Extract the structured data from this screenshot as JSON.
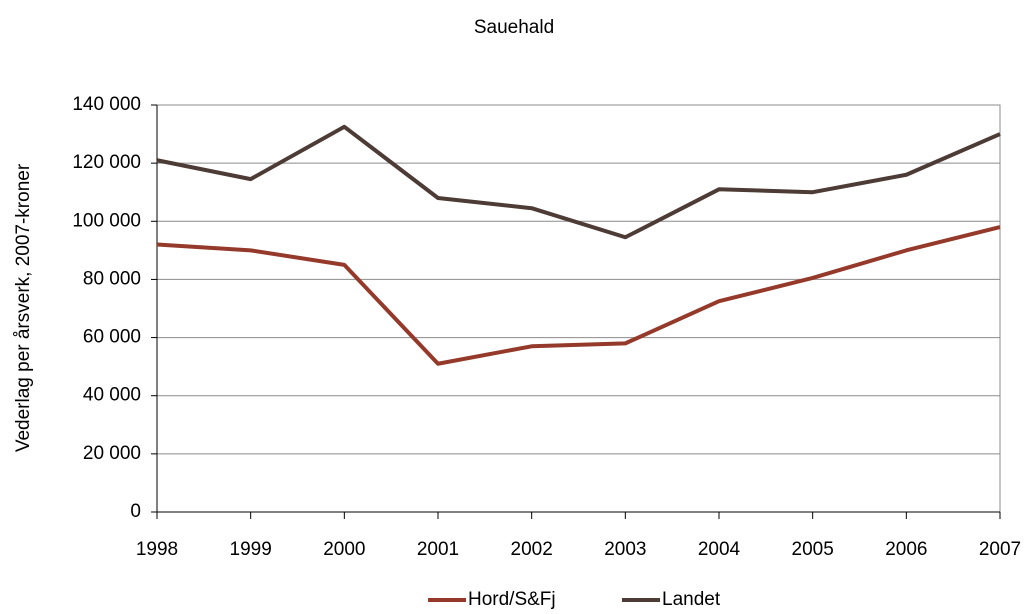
{
  "chart_data": {
    "type": "line",
    "title": "Sauehald",
    "ylabel": "Vederlag per årsverk, 2007-kroner",
    "x": [
      1998,
      1999,
      2000,
      2001,
      2002,
      2003,
      2004,
      2005,
      2006,
      2007
    ],
    "xlim": [
      1998,
      2007
    ],
    "xticks": [
      1998,
      1999,
      2000,
      2001,
      2002,
      2003,
      2004,
      2005,
      2006,
      2007
    ],
    "ylim": [
      0,
      140000
    ],
    "yticks": [
      0,
      {
        "value": 20000,
        "label": "20 000"
      },
      {
        "value": 40000,
        "label": "40 000"
      },
      {
        "value": 60000,
        "label": "60 000"
      },
      {
        "value": 80000,
        "label": "80 000"
      },
      {
        "value": 100000,
        "label": "100 000"
      },
      {
        "value": 120000,
        "label": "120 000"
      },
      {
        "value": 140000,
        "label": "140 000"
      }
    ],
    "grid": true,
    "legend": "bottom",
    "series": [
      {
        "name": "Hord/S&Fj",
        "color": "#953a2b",
        "values": [
          92000,
          90000,
          85000,
          51000,
          57000,
          58000,
          72500,
          80500,
          90000,
          98000
        ]
      },
      {
        "name": "Landet",
        "color": "#4d3b35",
        "values": [
          121000,
          114500,
          132500,
          108000,
          104500,
          94500,
          111000,
          110000,
          116000,
          130000
        ]
      }
    ]
  }
}
